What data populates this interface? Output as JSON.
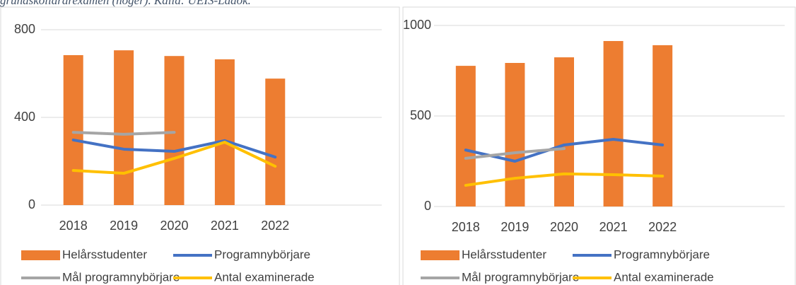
{
  "caption": "grundskollärarexamen (höger). Källa: UEIS-Ladok.",
  "chart_data": [
    {
      "type": "bar",
      "categories": [
        "2018",
        "2019",
        "2020",
        "2021",
        "2022"
      ],
      "series": [
        {
          "name": "Helårsstudenter",
          "type": "bar",
          "color": "#ED7D31",
          "values": [
            684,
            706,
            680,
            665,
            577
          ]
        },
        {
          "name": "Programnybörjare",
          "type": "line",
          "color": "#4472C4",
          "values": [
            297,
            255,
            245,
            294,
            219
          ]
        },
        {
          "name": "Mål programnybörjare",
          "type": "line",
          "color": "#A5A5A5",
          "values": [
            332,
            323,
            332,
            null,
            null
          ]
        },
        {
          "name": "Antal examinerade",
          "type": "line",
          "color": "#FFC000",
          "values": [
            158,
            145,
            213,
            287,
            177
          ]
        }
      ],
      "ylim": [
        0,
        800
      ],
      "yticks": [
        0,
        400,
        800
      ],
      "grid": true
    },
    {
      "type": "bar",
      "categories": [
        "2018",
        "2019",
        "2020",
        "2021",
        "2022"
      ],
      "series": [
        {
          "name": "Helårsstudenter",
          "type": "bar",
          "color": "#ED7D31",
          "values": [
            777,
            793,
            824,
            914,
            891
          ]
        },
        {
          "name": "Programnybörjare",
          "type": "line",
          "color": "#4472C4",
          "values": [
            312,
            250,
            340,
            371,
            340
          ]
        },
        {
          "name": "Mål programnybörjare",
          "type": "line",
          "color": "#A5A5A5",
          "values": [
            266,
            297,
            320,
            null,
            null
          ]
        },
        {
          "name": "Antal examinerade",
          "type": "line",
          "color": "#FFC000",
          "values": [
            117,
            156,
            180,
            176,
            168
          ]
        }
      ],
      "ylim": [
        0,
        1000
      ],
      "yticks": [
        0,
        500,
        1000
      ],
      "grid": true
    }
  ]
}
